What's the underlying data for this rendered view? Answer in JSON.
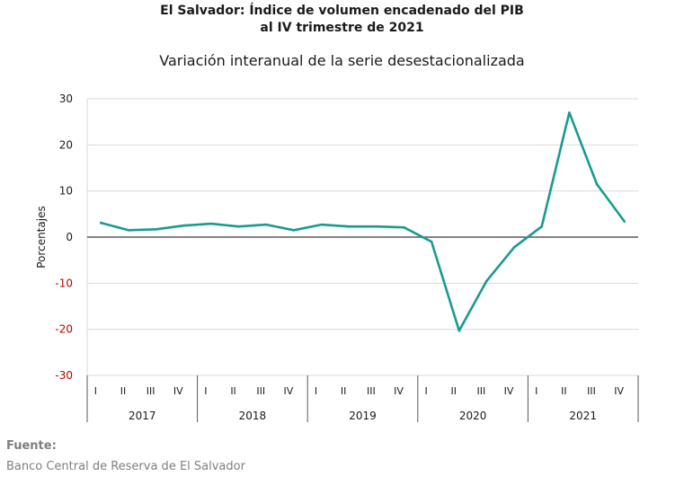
{
  "header": {
    "title_line1": "El Salvador: Índice de volumen encadenado del PIB",
    "title_line2": "al IV trimestre de 2021",
    "subtitle": "Variación interanual de la serie desestacionalizada"
  },
  "footer": {
    "source_label": "Fuente:",
    "source_text": "Banco Central de Reserva de El Salvador"
  },
  "colors": {
    "series": "#1a9a8f",
    "negative_tick": "#c00000",
    "grid": "#d9d9d9",
    "axis": "#595959"
  },
  "chart_data": {
    "type": "line",
    "title": "El Salvador: Índice de volumen encadenado del PIB al IV trimestre de 2021",
    "subtitle": "Variación interanual de la serie desestacionalizada",
    "ylabel": "Porcentajes",
    "xlabel": "",
    "ylim": [
      -30,
      30
    ],
    "yticks": [
      30,
      20,
      10,
      0,
      -10,
      -20,
      -30
    ],
    "grid": true,
    "legend": "none",
    "years": [
      "2017",
      "2018",
      "2019",
      "2020",
      "2021"
    ],
    "quarters": [
      "I",
      "II",
      "III",
      "IV"
    ],
    "x": [
      "2017-I",
      "2017-II",
      "2017-III",
      "2017-IV",
      "2018-I",
      "2018-II",
      "2018-III",
      "2018-IV",
      "2019-I",
      "2019-II",
      "2019-III",
      "2019-IV",
      "2020-I",
      "2020-II",
      "2020-III",
      "2020-IV",
      "2021-I",
      "2021-II",
      "2021-III",
      "2021-IV"
    ],
    "values": [
      3.1,
      1.5,
      1.7,
      2.5,
      2.9,
      2.3,
      2.7,
      1.5,
      2.7,
      2.3,
      2.3,
      2.1,
      -1.0,
      -20.3,
      -9.5,
      -2.2,
      2.3,
      27.0,
      11.5,
      3.4
    ]
  }
}
